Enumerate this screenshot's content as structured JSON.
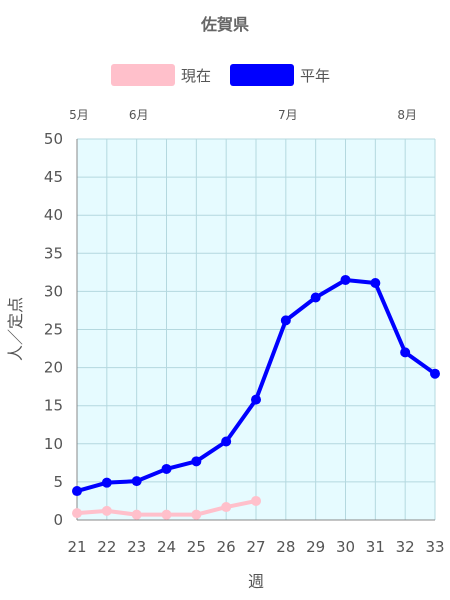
{
  "chart_data": {
    "type": "line",
    "title": "佐賀県",
    "xlabel": "週",
    "ylabel": "人／定点",
    "x": [
      21,
      22,
      23,
      24,
      25,
      26,
      27,
      28,
      29,
      30,
      31,
      32,
      33
    ],
    "ylim": [
      0,
      50
    ],
    "yticks": [
      0,
      5,
      10,
      15,
      20,
      25,
      30,
      35,
      40,
      45,
      50
    ],
    "months": [
      {
        "label": "5月",
        "week": 21
      },
      {
        "label": "6月",
        "week": 23
      },
      {
        "label": "7月",
        "week": 28
      },
      {
        "label": "8月",
        "week": 32
      }
    ],
    "legend_position": "top",
    "grid": true,
    "plot_background": "#e6fbff",
    "grid_color": "#b4d8df",
    "series": [
      {
        "name": "現在",
        "color": "#ffc0cb",
        "values": [
          0.9,
          1.2,
          0.7,
          0.7,
          0.7,
          1.7,
          2.5,
          null,
          null,
          null,
          null,
          null,
          null
        ]
      },
      {
        "name": "平年",
        "color": "#0000ff",
        "values": [
          3.8,
          4.9,
          5.1,
          6.7,
          7.7,
          10.3,
          15.8,
          26.2,
          29.2,
          31.5,
          31.1,
          22.0,
          19.2
        ]
      }
    ]
  }
}
